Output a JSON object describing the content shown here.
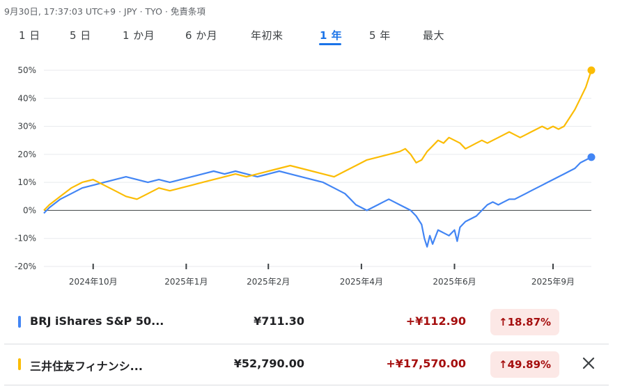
{
  "status_line": "9月30日, 17:37:03 UTC+9 · JPY · TYO · 免責条項",
  "tabs": [
    {
      "label": "1 日",
      "active": false
    },
    {
      "label": "5 日",
      "active": false
    },
    {
      "label": "1 か月",
      "active": false
    },
    {
      "label": "6 か月",
      "active": false
    },
    {
      "label": "年初来",
      "active": false
    },
    {
      "label": "1 年",
      "active": true
    },
    {
      "label": "5 年",
      "active": false
    },
    {
      "label": "最大",
      "active": false
    }
  ],
  "colors": {
    "blue": "#4285f4",
    "yellow": "#fbbc04",
    "accent": "#1a73e8",
    "negative": "#a50e0e",
    "negative_bg": "#fce8e6"
  },
  "chart_data": {
    "type": "line",
    "title": "",
    "xlabel": "",
    "ylabel": "",
    "ylim": [
      -20,
      50
    ],
    "yticks": [
      "50%",
      "40%",
      "30%",
      "20%",
      "10%",
      "0%",
      "-10%",
      "-20%"
    ],
    "xticks": [
      "2024年10月",
      "2025年1月",
      "2025年2月",
      "2025年4月",
      "2025年6月",
      "2025年9月"
    ],
    "grid": true,
    "series": [
      {
        "name": "BRJ iShares S&P 50...",
        "color": "#4285f4",
        "points": [
          [
            0,
            -1
          ],
          [
            0.01,
            1
          ],
          [
            0.03,
            4
          ],
          [
            0.05,
            6
          ],
          [
            0.07,
            8
          ],
          [
            0.09,
            9
          ],
          [
            0.11,
            10
          ],
          [
            0.13,
            11
          ],
          [
            0.15,
            12
          ],
          [
            0.17,
            11
          ],
          [
            0.19,
            10
          ],
          [
            0.21,
            11
          ],
          [
            0.23,
            10
          ],
          [
            0.25,
            11
          ],
          [
            0.27,
            12
          ],
          [
            0.29,
            13
          ],
          [
            0.31,
            14
          ],
          [
            0.33,
            13
          ],
          [
            0.35,
            14
          ],
          [
            0.37,
            13
          ],
          [
            0.39,
            12
          ],
          [
            0.41,
            13
          ],
          [
            0.43,
            14
          ],
          [
            0.45,
            13
          ],
          [
            0.47,
            12
          ],
          [
            0.49,
            11
          ],
          [
            0.51,
            10
          ],
          [
            0.53,
            8
          ],
          [
            0.55,
            6
          ],
          [
            0.56,
            4
          ],
          [
            0.57,
            2
          ],
          [
            0.58,
            1
          ],
          [
            0.59,
            0
          ],
          [
            0.6,
            1
          ],
          [
            0.61,
            2
          ],
          [
            0.62,
            3
          ],
          [
            0.63,
            4
          ],
          [
            0.64,
            3
          ],
          [
            0.65,
            2
          ],
          [
            0.66,
            1
          ],
          [
            0.67,
            0
          ],
          [
            0.68,
            -2
          ],
          [
            0.69,
            -5
          ],
          [
            0.695,
            -10
          ],
          [
            0.7,
            -13
          ],
          [
            0.705,
            -9
          ],
          [
            0.71,
            -12
          ],
          [
            0.72,
            -7
          ],
          [
            0.73,
            -8
          ],
          [
            0.74,
            -9
          ],
          [
            0.75,
            -7
          ],
          [
            0.755,
            -11
          ],
          [
            0.76,
            -6
          ],
          [
            0.77,
            -4
          ],
          [
            0.78,
            -3
          ],
          [
            0.79,
            -2
          ],
          [
            0.8,
            0
          ],
          [
            0.81,
            2
          ],
          [
            0.82,
            3
          ],
          [
            0.83,
            2
          ],
          [
            0.84,
            3
          ],
          [
            0.85,
            4
          ],
          [
            0.86,
            4
          ],
          [
            0.87,
            5
          ],
          [
            0.88,
            6
          ],
          [
            0.89,
            7
          ],
          [
            0.9,
            8
          ],
          [
            0.91,
            9
          ],
          [
            0.92,
            10
          ],
          [
            0.93,
            11
          ],
          [
            0.94,
            12
          ],
          [
            0.95,
            13
          ],
          [
            0.96,
            14
          ],
          [
            0.97,
            15
          ],
          [
            0.98,
            17
          ],
          [
            0.99,
            18
          ],
          [
            1.0,
            19
          ]
        ]
      },
      {
        "name": "三井住友フィナンシ...",
        "color": "#fbbc04",
        "points": [
          [
            0,
            0
          ],
          [
            0.01,
            2
          ],
          [
            0.03,
            5
          ],
          [
            0.05,
            8
          ],
          [
            0.07,
            10
          ],
          [
            0.09,
            11
          ],
          [
            0.11,
            9
          ],
          [
            0.13,
            7
          ],
          [
            0.15,
            5
          ],
          [
            0.17,
            4
          ],
          [
            0.19,
            6
          ],
          [
            0.21,
            8
          ],
          [
            0.23,
            7
          ],
          [
            0.25,
            8
          ],
          [
            0.27,
            9
          ],
          [
            0.29,
            10
          ],
          [
            0.31,
            11
          ],
          [
            0.33,
            12
          ],
          [
            0.35,
            13
          ],
          [
            0.37,
            12
          ],
          [
            0.39,
            13
          ],
          [
            0.41,
            14
          ],
          [
            0.43,
            15
          ],
          [
            0.45,
            16
          ],
          [
            0.47,
            15
          ],
          [
            0.49,
            14
          ],
          [
            0.51,
            13
          ],
          [
            0.53,
            12
          ],
          [
            0.55,
            14
          ],
          [
            0.57,
            16
          ],
          [
            0.59,
            18
          ],
          [
            0.61,
            19
          ],
          [
            0.63,
            20
          ],
          [
            0.65,
            21
          ],
          [
            0.66,
            22
          ],
          [
            0.67,
            20
          ],
          [
            0.68,
            17
          ],
          [
            0.69,
            18
          ],
          [
            0.7,
            21
          ],
          [
            0.71,
            23
          ],
          [
            0.72,
            25
          ],
          [
            0.73,
            24
          ],
          [
            0.74,
            26
          ],
          [
            0.75,
            25
          ],
          [
            0.76,
            24
          ],
          [
            0.77,
            22
          ],
          [
            0.78,
            23
          ],
          [
            0.79,
            24
          ],
          [
            0.8,
            25
          ],
          [
            0.81,
            24
          ],
          [
            0.82,
            25
          ],
          [
            0.83,
            26
          ],
          [
            0.84,
            27
          ],
          [
            0.85,
            28
          ],
          [
            0.86,
            27
          ],
          [
            0.87,
            26
          ],
          [
            0.88,
            27
          ],
          [
            0.89,
            28
          ],
          [
            0.9,
            29
          ],
          [
            0.91,
            30
          ],
          [
            0.92,
            29
          ],
          [
            0.93,
            30
          ],
          [
            0.94,
            29
          ],
          [
            0.95,
            30
          ],
          [
            0.96,
            33
          ],
          [
            0.97,
            36
          ],
          [
            0.98,
            40
          ],
          [
            0.99,
            44
          ],
          [
            1.0,
            50
          ]
        ]
      }
    ]
  },
  "rows": [
    {
      "name": "BRJ iShares S&P 50...",
      "price": "¥711.30",
      "change": "+¥112.90",
      "pct": "18.87%",
      "pct_arrow": "↑",
      "color": "#4285f4"
    },
    {
      "name": "三井住友フィナンシ...",
      "price": "¥52,790.00",
      "change": "+¥17,570.00",
      "pct": "49.89%",
      "pct_arrow": "↑",
      "color": "#fbbc04",
      "close_icon": "close-icon"
    }
  ]
}
